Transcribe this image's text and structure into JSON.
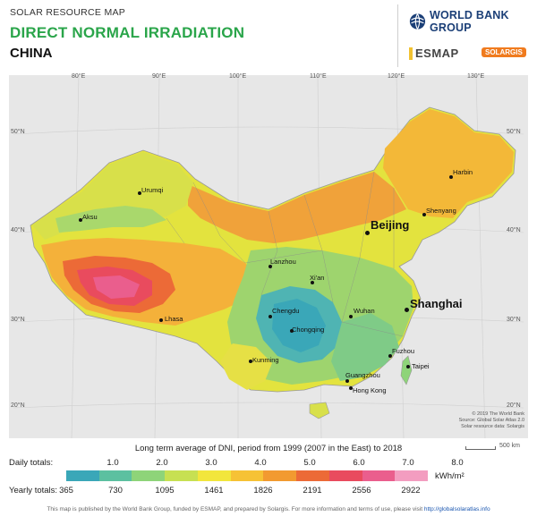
{
  "header": {
    "kicker": "SOLAR RESOURCE MAP",
    "title": "DIRECT NORMAL IRRADIATION",
    "country": "CHINA"
  },
  "logos": {
    "wbg": "WORLD BANK GROUP",
    "esmap": "ESMAP",
    "solargis": "SOLARGIS"
  },
  "map": {
    "lon_ticks": [
      "80°E",
      "90°E",
      "100°E",
      "110°E",
      "120°E",
      "130°E"
    ],
    "lat_ticks": [
      "50°N",
      "40°N",
      "30°N",
      "20°N"
    ],
    "cities_small": [
      "Urumqi",
      "Aksu",
      "Harbin",
      "Shenyang",
      "Lanzhou",
      "Xi'an",
      "Chengdu",
      "Wuhan",
      "Chongqing",
      "Lhasa",
      "Kunming",
      "Fuzhou",
      "Taipei",
      "Guangzhou",
      "Hong Kong"
    ],
    "cities_big": [
      "Beijing",
      "Shanghai"
    ],
    "copyright": [
      "© 2019 The World Bank",
      "Source: Global Solar Atlas 2.0",
      "Solar resource data: Solargis"
    ],
    "scale": "500 km"
  },
  "legend": {
    "title": "Long term average of DNI, period from 1999 (2007 in the East) to 2018",
    "daily_label": "Daily totals:",
    "yearly_label": "Yearly totals:",
    "unit": "kWh/m²",
    "daily": [
      "1.0",
      "2.0",
      "3.0",
      "4.0",
      "5.0",
      "6.0",
      "7.0",
      "8.0"
    ],
    "yearly": [
      "365",
      "730",
      "1095",
      "1461",
      "1826",
      "2191",
      "2556",
      "2922"
    ],
    "colors": [
      "#3aa7b8",
      "#5cc0a0",
      "#8ed479",
      "#c7e052",
      "#f2e63c",
      "#f6c235",
      "#f29a30",
      "#ec6a37",
      "#e94b5e",
      "#ea5e8d",
      "#f39dc0"
    ]
  },
  "footer": {
    "text": "This map is published by the World Bank Group, funded by ESMAP, and prepared by Solargis. For more information and terms of use, please visit",
    "link": "http://globalsolaratlas.info"
  }
}
